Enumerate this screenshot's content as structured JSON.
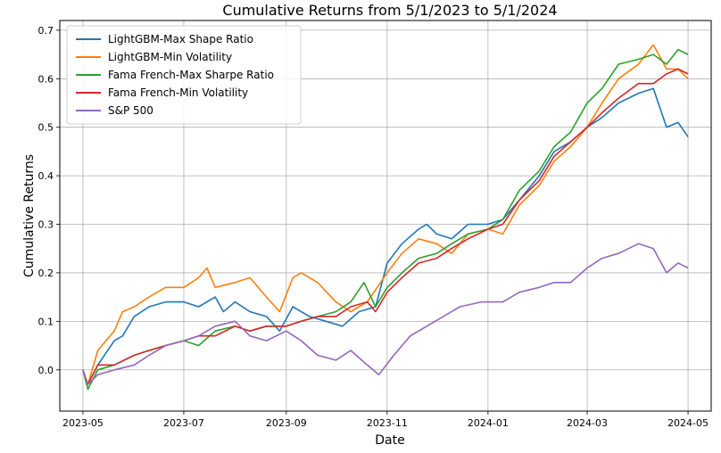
{
  "chart_data": {
    "type": "line",
    "title": "Cumulative Returns from 5/1/2023 to 5/1/2024",
    "xlabel": "Date",
    "ylabel": "Cumulative Returns",
    "xlim": [
      "2023-04-17",
      "2024-05-15"
    ],
    "ylim": [
      -0.085,
      0.72
    ],
    "x_ticks": [
      "2023-05",
      "2023-07",
      "2023-09",
      "2023-11",
      "2024-01",
      "2024-03",
      "2024-05"
    ],
    "y_ticks": [
      0.0,
      0.1,
      0.2,
      0.3,
      0.4,
      0.5,
      0.6,
      0.7
    ],
    "y_tick_labels": [
      "0.0",
      "0.1",
      "0.2",
      "0.3",
      "0.4",
      "0.5",
      "0.6",
      "0.7"
    ],
    "grid": true,
    "legend_position": "top-left",
    "series": [
      {
        "name": "LightGBM-Max Shape Ratio",
        "color": "#1f77b4",
        "points": [
          [
            "2023-05-01",
            0.0
          ],
          [
            "2023-05-04",
            -0.03
          ],
          [
            "2023-05-10",
            0.01
          ],
          [
            "2023-05-20",
            0.06
          ],
          [
            "2023-05-25",
            0.07
          ],
          [
            "2023-06-01",
            0.11
          ],
          [
            "2023-06-10",
            0.13
          ],
          [
            "2023-06-20",
            0.14
          ],
          [
            "2023-07-01",
            0.14
          ],
          [
            "2023-07-10",
            0.13
          ],
          [
            "2023-07-20",
            0.15
          ],
          [
            "2023-07-25",
            0.12
          ],
          [
            "2023-08-01",
            0.14
          ],
          [
            "2023-08-10",
            0.12
          ],
          [
            "2023-08-20",
            0.11
          ],
          [
            "2023-08-28",
            0.08
          ],
          [
            "2023-09-05",
            0.13
          ],
          [
            "2023-09-15",
            0.11
          ],
          [
            "2023-09-25",
            0.1
          ],
          [
            "2023-10-05",
            0.09
          ],
          [
            "2023-10-15",
            0.12
          ],
          [
            "2023-10-25",
            0.13
          ],
          [
            "2023-11-01",
            0.22
          ],
          [
            "2023-11-10",
            0.26
          ],
          [
            "2023-11-20",
            0.29
          ],
          [
            "2023-11-25",
            0.3
          ],
          [
            "2023-12-01",
            0.28
          ],
          [
            "2023-12-10",
            0.27
          ],
          [
            "2023-12-20",
            0.3
          ],
          [
            "2024-01-01",
            0.3
          ],
          [
            "2024-01-10",
            0.31
          ],
          [
            "2024-01-20",
            0.35
          ],
          [
            "2024-02-01",
            0.4
          ],
          [
            "2024-02-10",
            0.45
          ],
          [
            "2024-02-20",
            0.47
          ],
          [
            "2024-03-01",
            0.5
          ],
          [
            "2024-03-10",
            0.52
          ],
          [
            "2024-03-20",
            0.55
          ],
          [
            "2024-04-01",
            0.57
          ],
          [
            "2024-04-10",
            0.58
          ],
          [
            "2024-04-18",
            0.5
          ],
          [
            "2024-04-25",
            0.51
          ],
          [
            "2024-05-01",
            0.48
          ]
        ]
      },
      {
        "name": "LightGBM-Min Volatility",
        "color": "#ff7f0e",
        "points": [
          [
            "2023-05-01",
            0.0
          ],
          [
            "2023-05-04",
            -0.03
          ],
          [
            "2023-05-10",
            0.04
          ],
          [
            "2023-05-20",
            0.08
          ],
          [
            "2023-05-25",
            0.12
          ],
          [
            "2023-06-01",
            0.13
          ],
          [
            "2023-06-10",
            0.15
          ],
          [
            "2023-06-20",
            0.17
          ],
          [
            "2023-07-01",
            0.17
          ],
          [
            "2023-07-10",
            0.19
          ],
          [
            "2023-07-15",
            0.21
          ],
          [
            "2023-07-20",
            0.17
          ],
          [
            "2023-08-01",
            0.18
          ],
          [
            "2023-08-10",
            0.19
          ],
          [
            "2023-08-20",
            0.15
          ],
          [
            "2023-08-28",
            0.12
          ],
          [
            "2023-09-05",
            0.19
          ],
          [
            "2023-09-10",
            0.2
          ],
          [
            "2023-09-20",
            0.18
          ],
          [
            "2023-10-01",
            0.14
          ],
          [
            "2023-10-10",
            0.12
          ],
          [
            "2023-10-20",
            0.14
          ],
          [
            "2023-11-01",
            0.2
          ],
          [
            "2023-11-10",
            0.24
          ],
          [
            "2023-11-20",
            0.27
          ],
          [
            "2023-12-01",
            0.26
          ],
          [
            "2023-12-10",
            0.24
          ],
          [
            "2023-12-20",
            0.28
          ],
          [
            "2024-01-01",
            0.29
          ],
          [
            "2024-01-10",
            0.28
          ],
          [
            "2024-01-20",
            0.34
          ],
          [
            "2024-02-01",
            0.38
          ],
          [
            "2024-02-10",
            0.43
          ],
          [
            "2024-02-20",
            0.46
          ],
          [
            "2024-03-01",
            0.5
          ],
          [
            "2024-03-10",
            0.55
          ],
          [
            "2024-03-20",
            0.6
          ],
          [
            "2024-04-01",
            0.63
          ],
          [
            "2024-04-10",
            0.67
          ],
          [
            "2024-04-18",
            0.62
          ],
          [
            "2024-04-25",
            0.62
          ],
          [
            "2024-05-01",
            0.6
          ]
        ]
      },
      {
        "name": "Fama French-Max Sharpe Ratio",
        "color": "#2ca02c",
        "points": [
          [
            "2023-05-01",
            0.0
          ],
          [
            "2023-05-04",
            -0.04
          ],
          [
            "2023-05-10",
            0.0
          ],
          [
            "2023-05-20",
            0.01
          ],
          [
            "2023-06-01",
            0.03
          ],
          [
            "2023-06-10",
            0.04
          ],
          [
            "2023-06-20",
            0.05
          ],
          [
            "2023-07-01",
            0.06
          ],
          [
            "2023-07-10",
            0.05
          ],
          [
            "2023-07-20",
            0.08
          ],
          [
            "2023-08-01",
            0.09
          ],
          [
            "2023-08-10",
            0.08
          ],
          [
            "2023-08-20",
            0.09
          ],
          [
            "2023-09-01",
            0.09
          ],
          [
            "2023-09-10",
            0.1
          ],
          [
            "2023-09-20",
            0.11
          ],
          [
            "2023-10-01",
            0.12
          ],
          [
            "2023-10-10",
            0.14
          ],
          [
            "2023-10-18",
            0.18
          ],
          [
            "2023-10-25",
            0.13
          ],
          [
            "2023-11-01",
            0.17
          ],
          [
            "2023-11-10",
            0.2
          ],
          [
            "2023-11-20",
            0.23
          ],
          [
            "2023-12-01",
            0.24
          ],
          [
            "2023-12-10",
            0.26
          ],
          [
            "2023-12-20",
            0.28
          ],
          [
            "2024-01-01",
            0.29
          ],
          [
            "2024-01-10",
            0.31
          ],
          [
            "2024-01-20",
            0.37
          ],
          [
            "2024-02-01",
            0.41
          ],
          [
            "2024-02-10",
            0.46
          ],
          [
            "2024-02-20",
            0.49
          ],
          [
            "2024-03-01",
            0.55
          ],
          [
            "2024-03-10",
            0.58
          ],
          [
            "2024-03-20",
            0.63
          ],
          [
            "2024-04-01",
            0.64
          ],
          [
            "2024-04-10",
            0.65
          ],
          [
            "2024-04-18",
            0.63
          ],
          [
            "2024-04-25",
            0.66
          ],
          [
            "2024-05-01",
            0.65
          ]
        ]
      },
      {
        "name": "Fama French-Min Volatility",
        "color": "#d62728",
        "points": [
          [
            "2023-05-01",
            0.0
          ],
          [
            "2023-05-04",
            -0.03
          ],
          [
            "2023-05-10",
            0.01
          ],
          [
            "2023-05-20",
            0.01
          ],
          [
            "2023-06-01",
            0.03
          ],
          [
            "2023-06-10",
            0.04
          ],
          [
            "2023-06-20",
            0.05
          ],
          [
            "2023-07-01",
            0.06
          ],
          [
            "2023-07-10",
            0.07
          ],
          [
            "2023-07-20",
            0.07
          ],
          [
            "2023-08-01",
            0.09
          ],
          [
            "2023-08-10",
            0.08
          ],
          [
            "2023-08-20",
            0.09
          ],
          [
            "2023-09-01",
            0.09
          ],
          [
            "2023-09-10",
            0.1
          ],
          [
            "2023-09-20",
            0.11
          ],
          [
            "2023-10-01",
            0.11
          ],
          [
            "2023-10-10",
            0.13
          ],
          [
            "2023-10-20",
            0.14
          ],
          [
            "2023-10-25",
            0.12
          ],
          [
            "2023-11-01",
            0.16
          ],
          [
            "2023-11-10",
            0.19
          ],
          [
            "2023-11-20",
            0.22
          ],
          [
            "2023-12-01",
            0.23
          ],
          [
            "2023-12-10",
            0.25
          ],
          [
            "2023-12-20",
            0.27
          ],
          [
            "2024-01-01",
            0.29
          ],
          [
            "2024-01-10",
            0.3
          ],
          [
            "2024-01-20",
            0.35
          ],
          [
            "2024-02-01",
            0.39
          ],
          [
            "2024-02-10",
            0.44
          ],
          [
            "2024-02-20",
            0.47
          ],
          [
            "2024-03-01",
            0.5
          ],
          [
            "2024-03-10",
            0.53
          ],
          [
            "2024-03-20",
            0.56
          ],
          [
            "2024-04-01",
            0.59
          ],
          [
            "2024-04-10",
            0.59
          ],
          [
            "2024-04-18",
            0.61
          ],
          [
            "2024-04-25",
            0.62
          ],
          [
            "2024-05-01",
            0.61
          ]
        ]
      },
      {
        "name": "S&P 500",
        "color": "#9467bd",
        "points": [
          [
            "2023-05-01",
            0.0
          ],
          [
            "2023-05-04",
            -0.03
          ],
          [
            "2023-05-10",
            -0.01
          ],
          [
            "2023-05-20",
            0.0
          ],
          [
            "2023-06-01",
            0.01
          ],
          [
            "2023-06-10",
            0.03
          ],
          [
            "2023-06-20",
            0.05
          ],
          [
            "2023-07-01",
            0.06
          ],
          [
            "2023-07-10",
            0.07
          ],
          [
            "2023-07-20",
            0.09
          ],
          [
            "2023-08-01",
            0.1
          ],
          [
            "2023-08-10",
            0.07
          ],
          [
            "2023-08-20",
            0.06
          ],
          [
            "2023-09-01",
            0.08
          ],
          [
            "2023-09-10",
            0.06
          ],
          [
            "2023-09-20",
            0.03
          ],
          [
            "2023-10-01",
            0.02
          ],
          [
            "2023-10-10",
            0.04
          ],
          [
            "2023-10-20",
            0.01
          ],
          [
            "2023-10-27",
            -0.01
          ],
          [
            "2023-11-05",
            0.03
          ],
          [
            "2023-11-15",
            0.07
          ],
          [
            "2023-11-25",
            0.09
          ],
          [
            "2023-12-05",
            0.11
          ],
          [
            "2023-12-15",
            0.13
          ],
          [
            "2023-12-28",
            0.14
          ],
          [
            "2024-01-10",
            0.14
          ],
          [
            "2024-01-20",
            0.16
          ],
          [
            "2024-02-01",
            0.17
          ],
          [
            "2024-02-10",
            0.18
          ],
          [
            "2024-02-20",
            0.18
          ],
          [
            "2024-03-01",
            0.21
          ],
          [
            "2024-03-10",
            0.23
          ],
          [
            "2024-03-20",
            0.24
          ],
          [
            "2024-04-01",
            0.26
          ],
          [
            "2024-04-10",
            0.25
          ],
          [
            "2024-04-18",
            0.2
          ],
          [
            "2024-04-25",
            0.22
          ],
          [
            "2024-05-01",
            0.21
          ]
        ]
      }
    ]
  }
}
